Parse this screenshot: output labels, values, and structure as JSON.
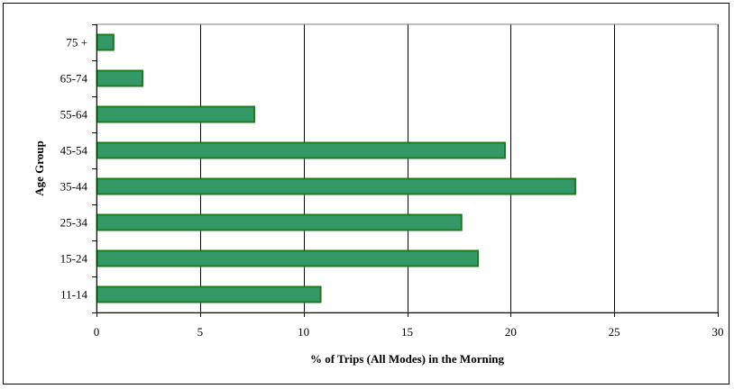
{
  "chart_data": {
    "type": "bar",
    "orientation": "horizontal",
    "title": "",
    "xlabel": "% of Trips (All Modes) in the Morning",
    "ylabel": "Age Group",
    "categories": [
      "11-14",
      "15-24",
      "25-34",
      "35-44",
      "45-54",
      "55-64",
      "65-74",
      "75 +"
    ],
    "values": [
      10.8,
      18.4,
      17.6,
      23.1,
      19.7,
      7.6,
      2.2,
      0.8
    ],
    "xlim": [
      0,
      30
    ],
    "xticks": [
      0,
      5,
      10,
      15,
      20,
      25,
      30
    ],
    "grid": "vertical",
    "legend": "none",
    "colors": {
      "bar_fill": "#339966",
      "bar_stroke": "#1f7a1f",
      "grid": "#000000"
    }
  }
}
